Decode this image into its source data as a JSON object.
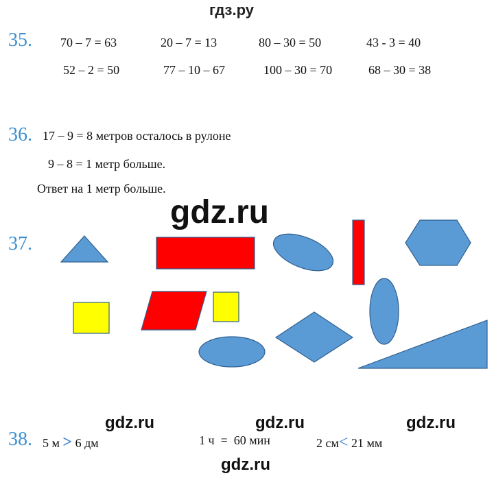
{
  "watermarks": {
    "top": "гдз.ру",
    "center": "gdz.ru",
    "row": [
      "gdz.ru",
      "gdz.ru",
      "gdz.ru"
    ],
    "bottom": "gdz.ru"
  },
  "task35": {
    "number": "35.",
    "row1": [
      "70 – 7 = 63",
      "20 – 7 = 13",
      "80 – 30 = 50",
      "43 - 3 = 40"
    ],
    "row2": [
      "52 – 2 = 50",
      "77 – 10 – 67",
      "100 – 30 = 70",
      "68 – 30 = 38"
    ]
  },
  "task36": {
    "number": "36.",
    "line1": "17 – 9 = 8 метров  осталось в рулоне",
    "line2": "9 – 8 = 1  метр больше.",
    "answer": "Ответ на 1 метр больше."
  },
  "task37": {
    "number": "37.",
    "colors": {
      "blue": "#5b9bd5",
      "red": "#ff0000",
      "yellow": "#ffff00",
      "outline": "#2f5f8f"
    }
  },
  "task38": {
    "number": "38.",
    "items": [
      {
        "left": "5 м",
        "op": ">",
        "right": "6 дм"
      },
      {
        "left": "1 ч",
        "op": "=",
        "right": "60 мин"
      },
      {
        "left": "2 см",
        "op": "<",
        "right": "21  мм"
      }
    ]
  }
}
